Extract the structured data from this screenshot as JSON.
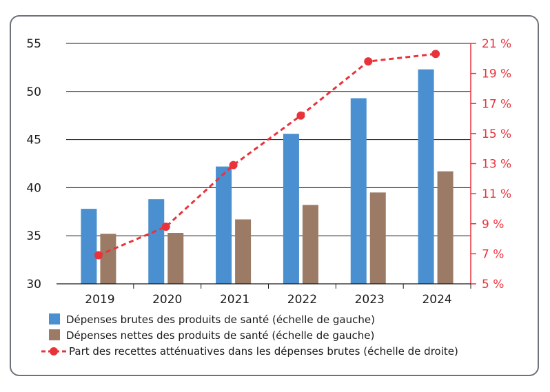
{
  "chart_data": {
    "type": "bar",
    "categories": [
      "2019",
      "2020",
      "2021",
      "2022",
      "2023",
      "2024"
    ],
    "series": [
      {
        "name": "Dépenses brutes des produits de santé (échelle de gauche)",
        "kind": "bar",
        "axis": "left",
        "color": "#4a8fcf",
        "values": [
          37.8,
          38.8,
          42.2,
          45.6,
          49.3,
          52.3
        ]
      },
      {
        "name": "Dépenses nettes des produits de santé (échelle de gauche)",
        "kind": "bar",
        "axis": "left",
        "color": "#9b7b65",
        "values": [
          35.2,
          35.3,
          36.7,
          38.2,
          39.5,
          41.7
        ]
      },
      {
        "name": "Part des recettes atténuatives dans les dépenses brutes (échelle de droite)",
        "kind": "line",
        "axis": "right",
        "color": "#e8333b",
        "style": "dashed",
        "values": [
          6.9,
          8.8,
          12.9,
          16.2,
          19.8,
          20.3
        ]
      }
    ],
    "ylim_left": [
      30,
      55
    ],
    "yticks_left": [
      "30",
      "35",
      "40",
      "45",
      "50",
      "55"
    ],
    "ylim_right": [
      5,
      21
    ],
    "yticks_right": [
      "5 %",
      "7 %",
      "9 %",
      "11 %",
      "13 %",
      "15 %",
      "17 %",
      "19 %",
      "21 %"
    ],
    "grid": true,
    "legend_position": "bottom"
  }
}
